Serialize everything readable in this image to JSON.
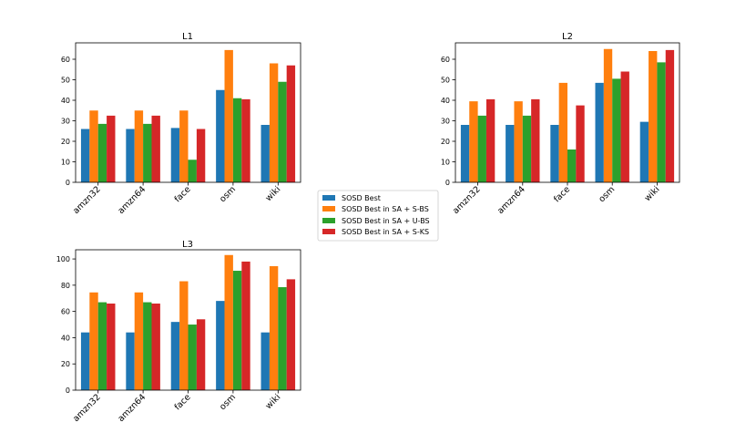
{
  "chart_data": [
    {
      "type": "bar",
      "title": "L1",
      "categories": [
        "amzn32",
        "amzn64",
        "face",
        "osm",
        "wiki"
      ],
      "ylim": [
        0,
        68
      ],
      "yticks": [
        0,
        10,
        20,
        30,
        40,
        50,
        60
      ],
      "series": [
        {
          "name": "SOSD Best",
          "values": [
            26,
            26,
            26.5,
            45,
            28
          ]
        },
        {
          "name": "SOSD Best in SA + S-BS",
          "values": [
            35,
            35,
            35,
            64.5,
            58
          ]
        },
        {
          "name": "SOSD Best in SA  + U-BS",
          "values": [
            28.5,
            28.5,
            11,
            41,
            49
          ]
        },
        {
          "name": "SOSD Best in SA  + S-KS",
          "values": [
            32.5,
            32.5,
            26,
            40.5,
            57
          ]
        }
      ]
    },
    {
      "type": "bar",
      "title": "L2",
      "categories": [
        "amzn32",
        "amzn64",
        "face",
        "osm",
        "wiki"
      ],
      "ylim": [
        0,
        68
      ],
      "yticks": [
        0,
        10,
        20,
        30,
        40,
        50,
        60
      ],
      "series": [
        {
          "name": "SOSD Best",
          "values": [
            28,
            28,
            28,
            48.5,
            29.5
          ]
        },
        {
          "name": "SOSD Best in SA + S-BS",
          "values": [
            39.5,
            39.5,
            48.5,
            65,
            64
          ]
        },
        {
          "name": "SOSD Best in SA  + U-BS",
          "values": [
            32.5,
            32.5,
            16,
            50.5,
            58.5
          ]
        },
        {
          "name": "SOSD Best in SA  + S-KS",
          "values": [
            40.5,
            40.5,
            37.5,
            54,
            64.5
          ]
        }
      ]
    },
    {
      "type": "bar",
      "title": "L3",
      "categories": [
        "amzn32",
        "amzn64",
        "face",
        "osm",
        "wiki"
      ],
      "ylim": [
        0,
        107
      ],
      "yticks": [
        0,
        20,
        40,
        60,
        80,
        100
      ],
      "series": [
        {
          "name": "SOSD Best",
          "values": [
            44,
            44,
            52,
            68,
            44
          ]
        },
        {
          "name": "SOSD Best in SA + S-BS",
          "values": [
            74.5,
            74.5,
            83,
            103,
            94.5
          ]
        },
        {
          "name": "SOSD Best in SA  + U-BS",
          "values": [
            67,
            67,
            50,
            91,
            78.5
          ]
        },
        {
          "name": "SOSD Best in SA  + S-KS",
          "values": [
            66,
            66,
            54,
            98,
            84.5
          ]
        }
      ]
    }
  ],
  "legend": {
    "position": "center",
    "entries": [
      {
        "label": "SOSD Best",
        "color": "#1f77b4"
      },
      {
        "label": "SOSD Best in SA + S-BS",
        "color": "#ff7f0e"
      },
      {
        "label": "SOSD Best in SA  + U-BS",
        "color": "#2ca02c"
      },
      {
        "label": "SOSD Best in SA  + S-KS",
        "color": "#d62728"
      }
    ]
  },
  "colors": [
    "#1f77b4",
    "#ff7f0e",
    "#2ca02c",
    "#d62728"
  ]
}
